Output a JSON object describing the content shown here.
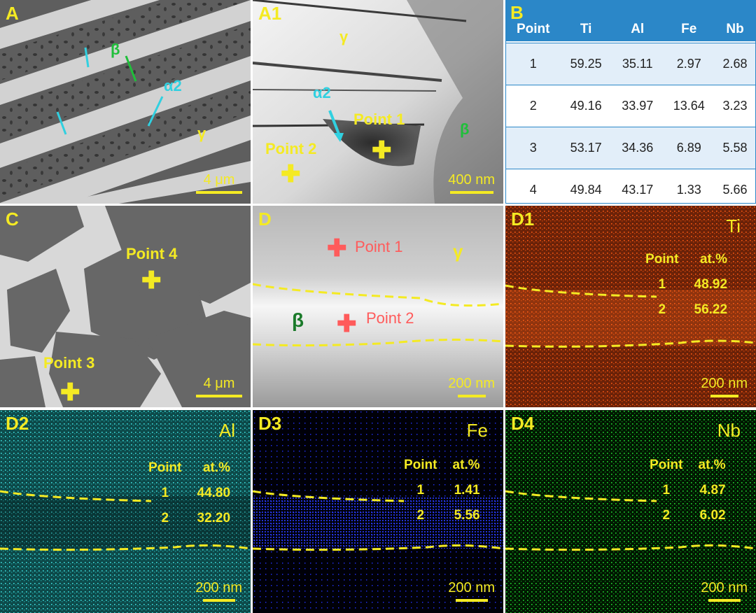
{
  "panels": {
    "A": {
      "label": "A",
      "scale": "4 μm",
      "annotations": {
        "beta": "β",
        "alpha2": "α2",
        "gamma": "γ"
      }
    },
    "A1": {
      "label": "A1",
      "scale": "400 nm",
      "points": [
        "Point 1",
        "Point 2"
      ],
      "annotations": {
        "gamma": "γ",
        "alpha2": "α2",
        "beta": "β"
      }
    },
    "B": {
      "label": "B",
      "headers": [
        "Point",
        "Ti",
        "Al",
        "Fe",
        "Nb"
      ],
      "rows": [
        [
          "1",
          "59.25",
          "35.11",
          "2.97",
          "2.68"
        ],
        [
          "2",
          "49.16",
          "33.97",
          "13.64",
          "3.23"
        ],
        [
          "3",
          "53.17",
          "34.36",
          "6.89",
          "5.58"
        ],
        [
          "4",
          "49.84",
          "43.17",
          "1.33",
          "5.66"
        ]
      ],
      "colors": {
        "header_bg": "#2b87c8",
        "alt_row": "#e2eef9"
      }
    },
    "C": {
      "label": "C",
      "scale": "4 μm",
      "points": [
        "Point 4",
        "Point 3"
      ]
    },
    "D": {
      "label": "D",
      "scale": "200 nm",
      "points": [
        "Point 1",
        "Point 2"
      ],
      "annotations": {
        "gamma": "γ",
        "beta": "β"
      }
    },
    "D1": {
      "label": "D1",
      "element": "Ti",
      "scale": "200 nm",
      "table": {
        "h1": "Point",
        "h2": "at.%",
        "rows": [
          [
            "1",
            "48.92"
          ],
          [
            "2",
            "56.22"
          ]
        ]
      },
      "color": "#ff5a14"
    },
    "D2": {
      "label": "D2",
      "element": "Al",
      "scale": "200 nm",
      "table": {
        "h1": "Point",
        "h2": "at.%",
        "rows": [
          [
            "1",
            "44.80"
          ],
          [
            "2",
            "32.20"
          ]
        ]
      },
      "color": "#2fd6d6"
    },
    "D3": {
      "label": "D3",
      "element": "Fe",
      "scale": "200 nm",
      "table": {
        "h1": "Point",
        "h2": "at.%",
        "rows": [
          [
            "1",
            "1.41"
          ],
          [
            "2",
            "5.56"
          ]
        ]
      },
      "color": "#2433ff"
    },
    "D4": {
      "label": "D4",
      "element": "Nb",
      "scale": "200 nm",
      "table": {
        "h1": "Point",
        "h2": "at.%",
        "rows": [
          [
            "1",
            "4.87"
          ],
          [
            "2",
            "6.02"
          ]
        ]
      },
      "color": "#22dd33"
    }
  }
}
